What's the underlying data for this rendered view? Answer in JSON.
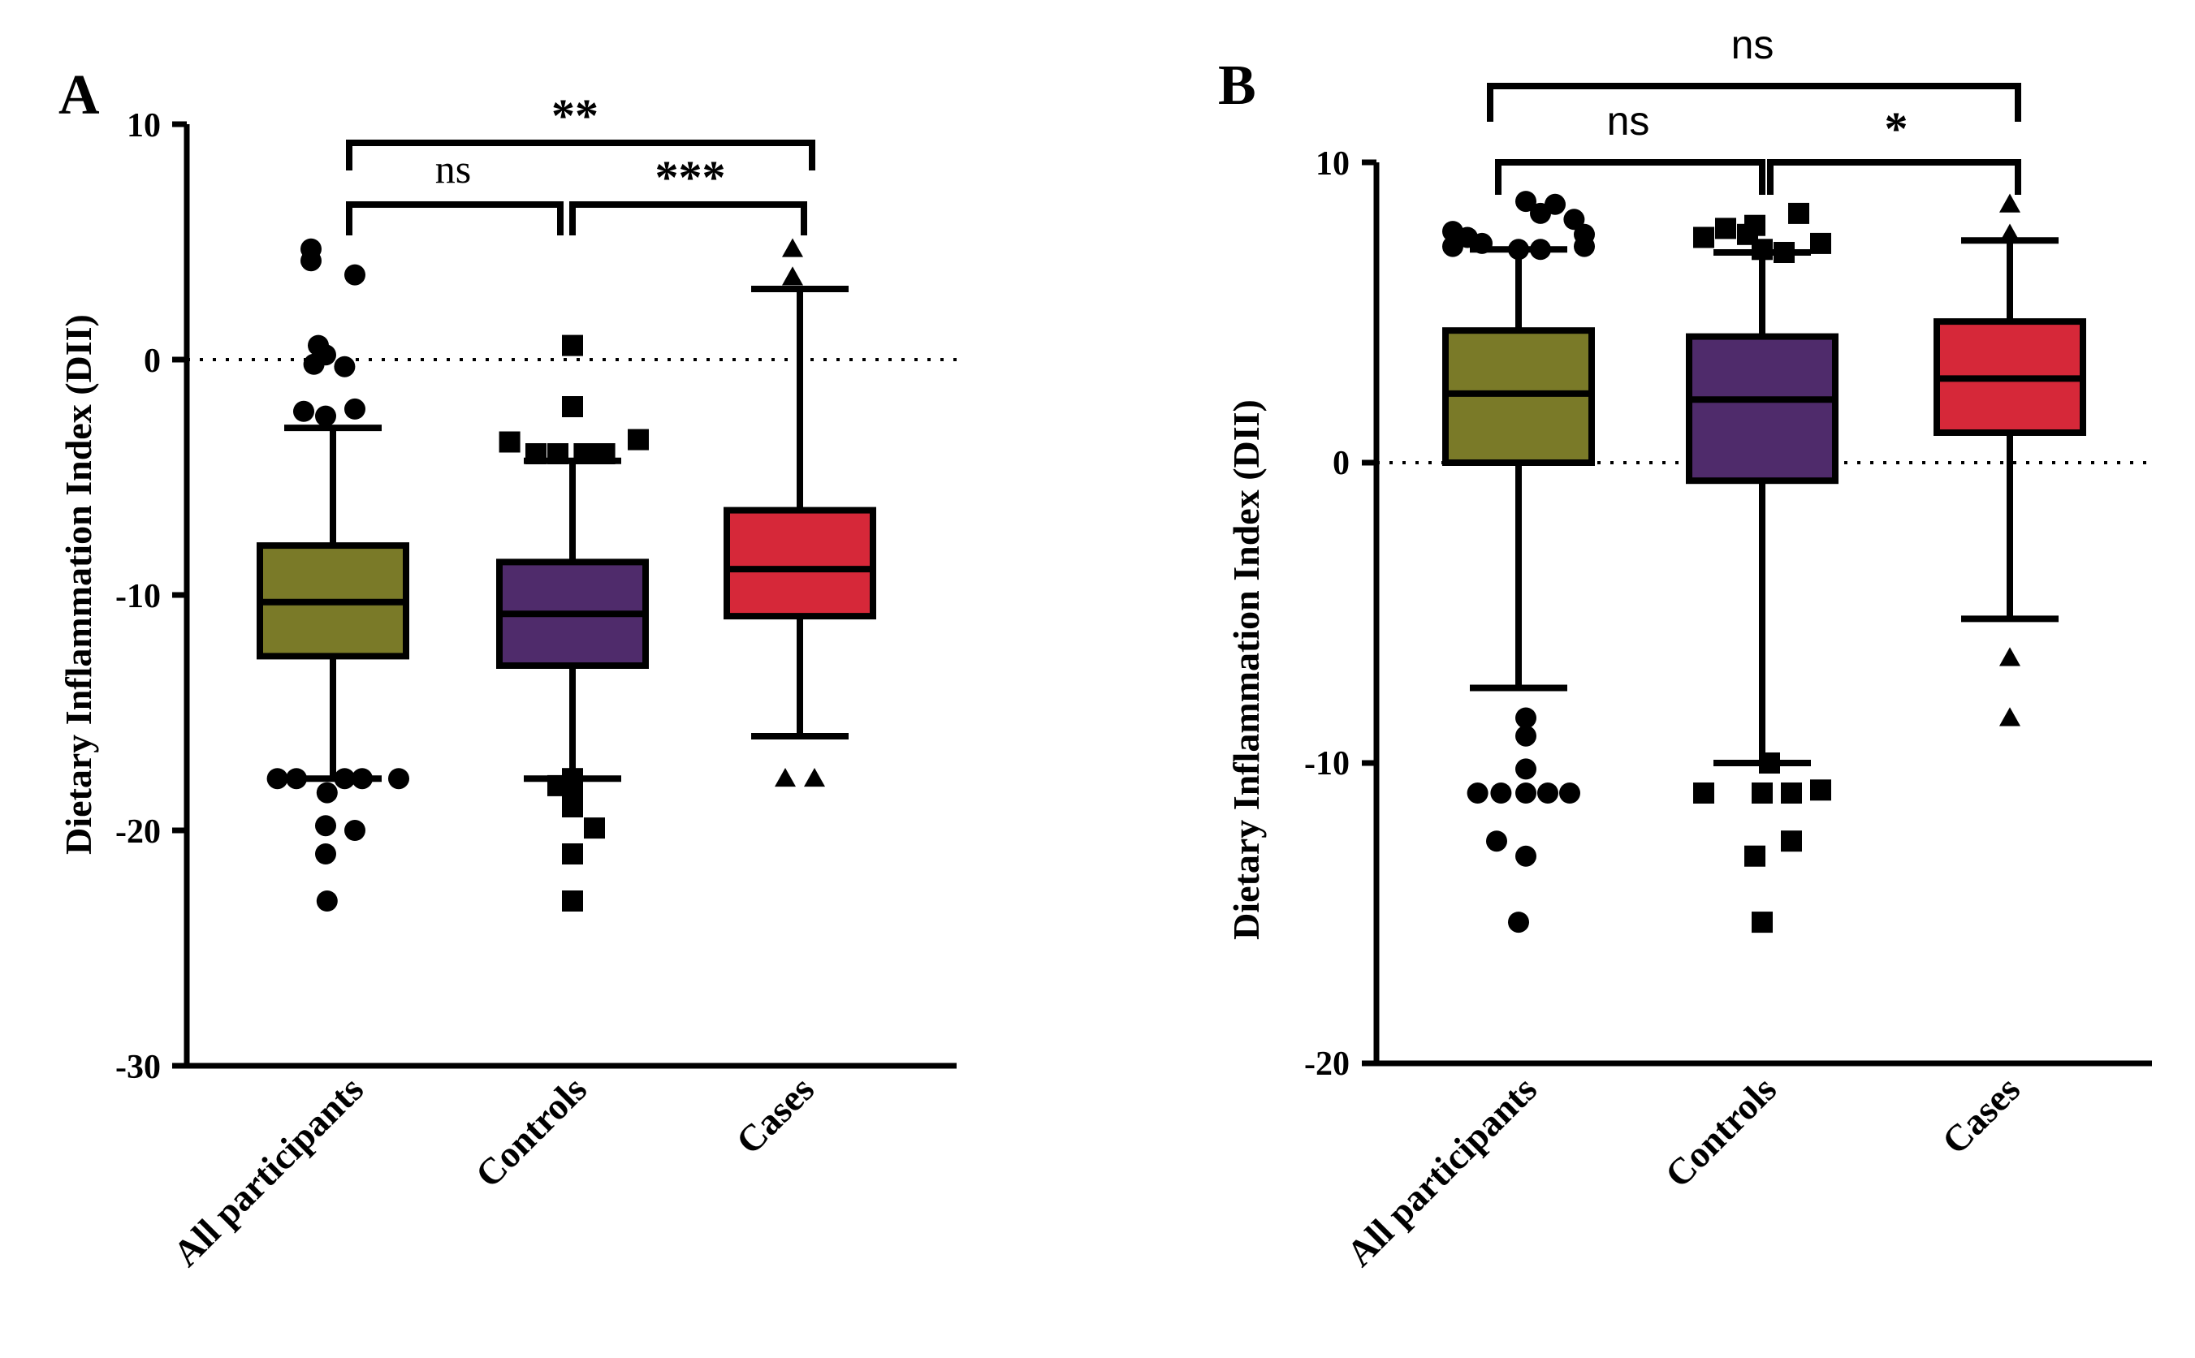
{
  "chart_data": [
    {
      "panel": "A",
      "type": "box",
      "ylabel": "Dietary Inflammation Index (DII)",
      "ylim": [
        -30,
        10
      ],
      "yticks": [
        10,
        0,
        -10,
        -20,
        -30
      ],
      "reference_line": 0,
      "categories": [
        "All participants",
        "Controls",
        "Cases"
      ],
      "series": [
        {
          "name": "All participants",
          "color": "#7a7a28",
          "marker": "circle",
          "whisker_low": -17.8,
          "q1": -12.6,
          "median": -10.3,
          "q3": -7.9,
          "whisker_high": -2.9,
          "outliers": [
            [
              -0.15,
              4.7
            ],
            [
              -0.15,
              4.2
            ],
            [
              0.15,
              3.6
            ],
            [
              -0.1,
              0.6
            ],
            [
              -0.05,
              0.2
            ],
            [
              -0.13,
              -0.2
            ],
            [
              0.08,
              -0.3
            ],
            [
              -0.2,
              -2.2
            ],
            [
              -0.05,
              -2.4
            ],
            [
              0.15,
              -2.1
            ],
            [
              0.2,
              -17.8
            ],
            [
              -0.38,
              -17.8
            ],
            [
              -0.25,
              -17.8
            ],
            [
              0.08,
              -17.8
            ],
            [
              -0.04,
              -18.4
            ],
            [
              0.45,
              -17.8
            ],
            [
              -0.05,
              -19.8
            ],
            [
              0.15,
              -20.0
            ],
            [
              -0.05,
              -21.0
            ],
            [
              -0.04,
              -23.0
            ]
          ]
        },
        {
          "name": "Controls",
          "color": "#4f2b6b",
          "marker": "square",
          "whisker_low": -17.8,
          "q1": -13.0,
          "median": -10.8,
          "q3": -8.6,
          "whisker_high": -4.3,
          "outliers": [
            [
              0.0,
              0.6
            ],
            [
              0.0,
              -2.0
            ],
            [
              -0.43,
              -3.5
            ],
            [
              0.45,
              -3.4
            ],
            [
              -0.25,
              -4.0
            ],
            [
              -0.1,
              -4.0
            ],
            [
              0.08,
              -4.0
            ],
            [
              0.22,
              -4.0
            ],
            [
              0.0,
              -17.8
            ],
            [
              -0.1,
              -18.1
            ],
            [
              0.0,
              -18.5
            ],
            [
              0.0,
              -19.0
            ],
            [
              0.15,
              -19.9
            ],
            [
              0.0,
              -21.0
            ],
            [
              0.0,
              -23.0
            ]
          ]
        },
        {
          "name": "Cases",
          "color": "#d62839",
          "marker": "triangle",
          "whisker_low": -16.0,
          "q1": -10.9,
          "median": -8.9,
          "q3": -6.4,
          "whisker_high": 3.0,
          "outliers": [
            [
              -0.05,
              4.7
            ],
            [
              -0.05,
              3.5
            ],
            [
              -0.1,
              -17.8
            ],
            [
              0.1,
              -17.8
            ]
          ]
        }
      ],
      "comparisons": [
        {
          "groups": [
            "All participants",
            "Controls"
          ],
          "label": "ns"
        },
        {
          "groups": [
            "Controls",
            "Cases"
          ],
          "label": "***"
        },
        {
          "groups": [
            "All participants",
            "Cases"
          ],
          "label": "**"
        }
      ]
    },
    {
      "panel": "B",
      "type": "box",
      "ylabel": "Dietary Inflammation Index (DII)",
      "ylim": [
        -20,
        10
      ],
      "yticks": [
        10,
        0,
        -10,
        -20
      ],
      "reference_line": 0,
      "categories": [
        "All participants",
        "Controls",
        "Cases"
      ],
      "series": [
        {
          "name": "All participants",
          "color": "#7a7a28",
          "marker": "circle",
          "whisker_low": -7.5,
          "q1": 0.0,
          "median": 2.3,
          "q3": 4.4,
          "whisker_high": 7.1,
          "outliers": [
            [
              -0.45,
              7.7
            ],
            [
              -0.35,
              7.5
            ],
            [
              -0.25,
              7.3
            ],
            [
              0.0,
              7.1
            ],
            [
              0.15,
              8.3
            ],
            [
              0.25,
              8.6
            ],
            [
              0.38,
              8.1
            ],
            [
              0.45,
              7.6
            ],
            [
              -0.45,
              7.2
            ],
            [
              0.45,
              7.2
            ],
            [
              0.15,
              7.1
            ],
            [
              0.05,
              8.7
            ],
            [
              0.05,
              -8.5
            ],
            [
              0.05,
              -9.1
            ],
            [
              0.05,
              -10.2
            ],
            [
              -0.28,
              -11.0
            ],
            [
              -0.12,
              -11.0
            ],
            [
              0.05,
              -11.0
            ],
            [
              0.2,
              -11.0
            ],
            [
              0.35,
              -11.0
            ],
            [
              -0.15,
              -12.6
            ],
            [
              0.05,
              -13.1
            ],
            [
              0.0,
              -15.3
            ]
          ]
        },
        {
          "name": "Controls",
          "color": "#4f2b6b",
          "marker": "square",
          "whisker_low": -10.0,
          "q1": -0.6,
          "median": 2.1,
          "q3": 4.2,
          "whisker_high": 7.0,
          "outliers": [
            [
              -0.4,
              7.5
            ],
            [
              -0.25,
              7.8
            ],
            [
              -0.1,
              7.6
            ],
            [
              0.0,
              7.1
            ],
            [
              0.15,
              7.0
            ],
            [
              0.25,
              8.3
            ],
            [
              0.4,
              7.3
            ],
            [
              -0.05,
              7.9
            ],
            [
              0.05,
              -10.0
            ],
            [
              -0.4,
              -11.0
            ],
            [
              0.0,
              -11.0
            ],
            [
              0.2,
              -11.0
            ],
            [
              0.4,
              -10.9
            ],
            [
              -0.05,
              -13.1
            ],
            [
              0.2,
              -12.6
            ],
            [
              0.0,
              -15.3
            ]
          ]
        },
        {
          "name": "Cases",
          "color": "#d62839",
          "marker": "triangle",
          "whisker_low": -5.2,
          "q1": 1.0,
          "median": 2.8,
          "q3": 4.7,
          "whisker_high": 7.4,
          "outliers": [
            [
              0.0,
              8.6
            ],
            [
              0.0,
              7.6
            ],
            [
              0.0,
              -6.5
            ],
            [
              0.0,
              -8.5
            ]
          ]
        }
      ],
      "comparisons": [
        {
          "groups": [
            "All participants",
            "Controls"
          ],
          "label": "ns"
        },
        {
          "groups": [
            "Controls",
            "Cases"
          ],
          "label": "*"
        },
        {
          "groups": [
            "All participants",
            "Cases"
          ],
          "label": "ns"
        }
      ]
    }
  ]
}
